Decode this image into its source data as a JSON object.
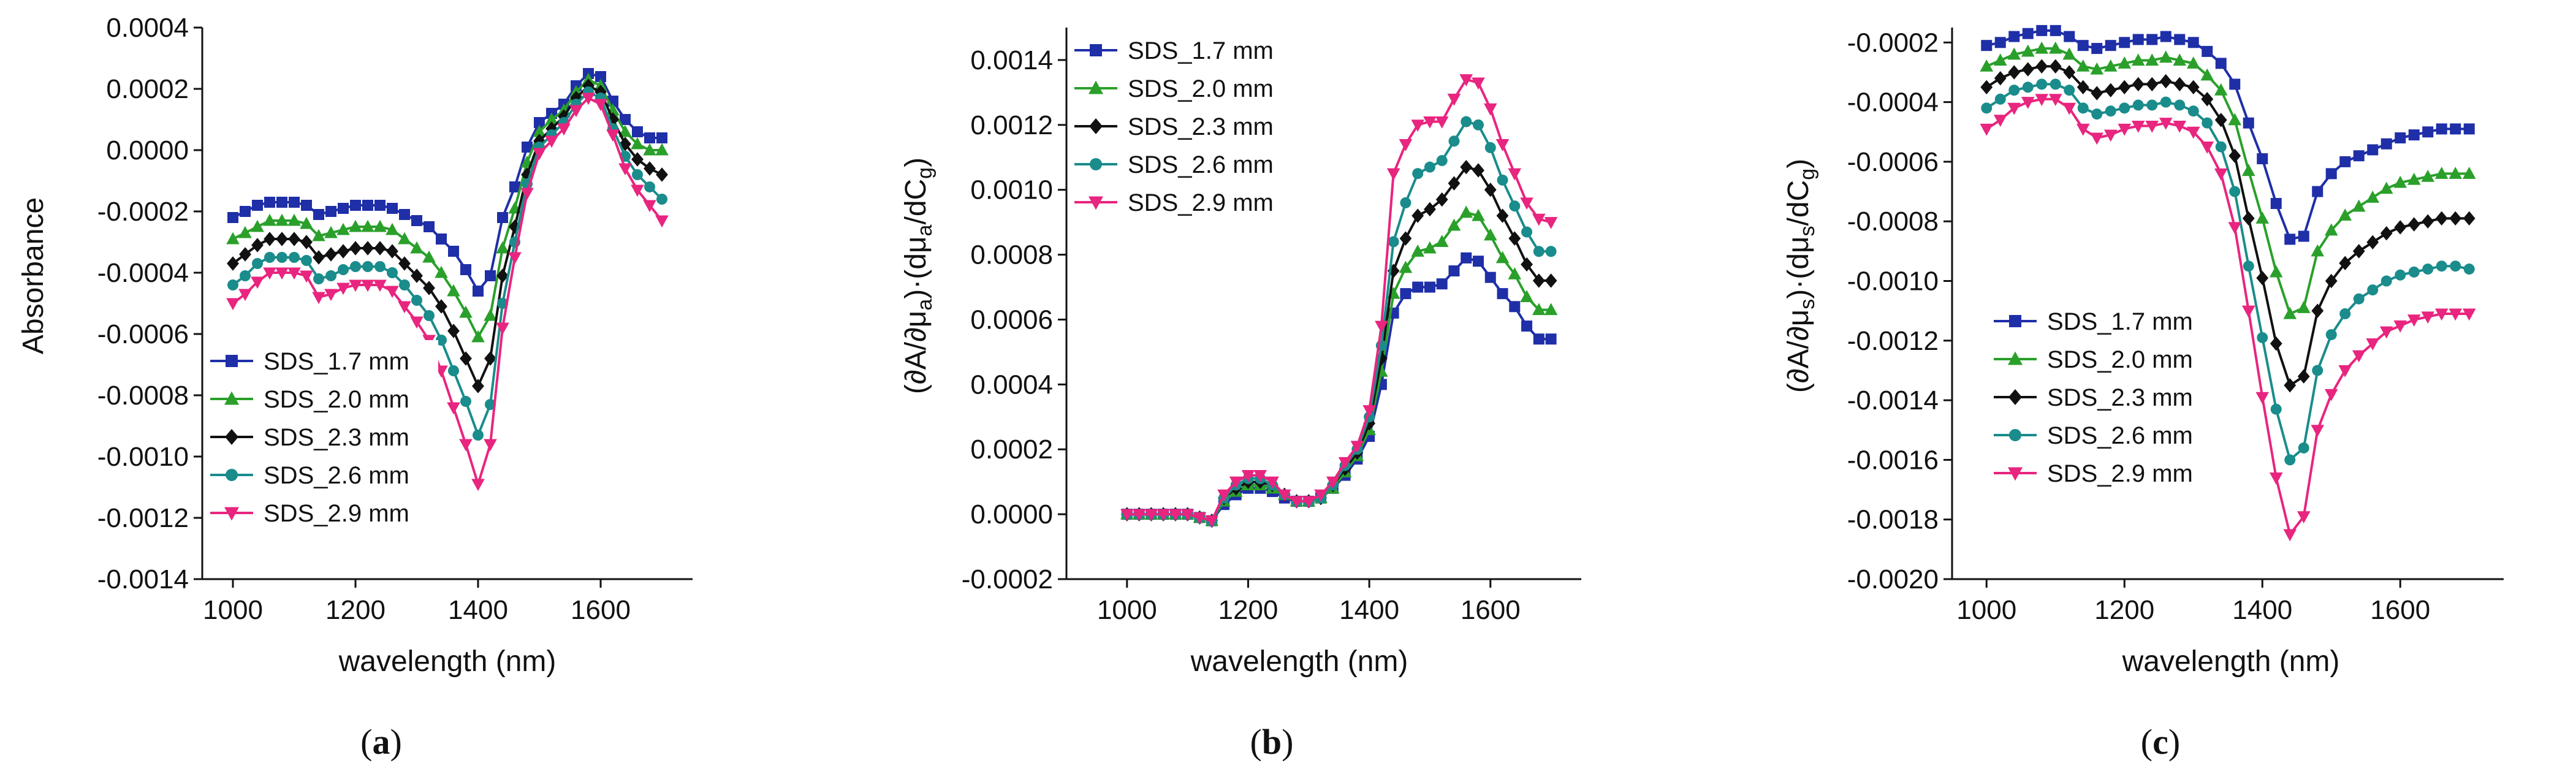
{
  "chart_data": [
    {
      "type": "line",
      "panel_label": "a",
      "title": "",
      "xlabel": "wavelength (nm)",
      "ylabel": "Absorbance",
      "xlim": [
        950,
        1750
      ],
      "ylim": [
        -0.0014,
        0.0004
      ],
      "xticks": [
        1000,
        1200,
        1400,
        1600
      ],
      "xtick_labels": [
        "1000",
        "1200",
        "1400",
        "1600"
      ],
      "yticks": [
        -0.0014,
        -0.0012,
        -0.001,
        -0.0008,
        -0.0006,
        -0.0004,
        -0.0002,
        0.0,
        0.0002,
        0.0004
      ],
      "ytick_labels": [
        "-0.0014",
        "-0.0012",
        "-0.0010",
        "-0.0008",
        "-0.0006",
        "-0.0004",
        "-0.0002",
        "0.0000",
        "0.0002",
        "0.0004"
      ],
      "legend_position": "lower-left",
      "x": [
        1000,
        1020,
        1040,
        1060,
        1080,
        1100,
        1120,
        1140,
        1160,
        1180,
        1200,
        1220,
        1240,
        1260,
        1280,
        1300,
        1320,
        1340,
        1360,
        1380,
        1400,
        1420,
        1440,
        1460,
        1480,
        1500,
        1520,
        1540,
        1560,
        1580,
        1600,
        1620,
        1640,
        1660,
        1680,
        1700
      ],
      "series": [
        {
          "name": "SDS_1.7 mm",
          "color": "#1f2fa8",
          "marker": "square",
          "values": [
            -0.00022,
            -0.0002,
            -0.00018,
            -0.00017,
            -0.00017,
            -0.00017,
            -0.00018,
            -0.00021,
            -0.0002,
            -0.00019,
            -0.00018,
            -0.00018,
            -0.00018,
            -0.00019,
            -0.00021,
            -0.00023,
            -0.00025,
            -0.00029,
            -0.00033,
            -0.00039,
            -0.00046,
            -0.00041,
            -0.00022,
            -0.00012,
            1e-05,
            9e-05,
            0.00012,
            0.00015,
            0.00021,
            0.00025,
            0.00024,
            0.00016,
            0.0001,
            6e-05,
            4e-05,
            4e-05
          ]
        },
        {
          "name": "SDS_2.0 mm",
          "color": "#2aa02a",
          "marker": "triangle-up",
          "values": [
            -0.00029,
            -0.00027,
            -0.00025,
            -0.00023,
            -0.00023,
            -0.00023,
            -0.00024,
            -0.00028,
            -0.00027,
            -0.00026,
            -0.00025,
            -0.00025,
            -0.00025,
            -0.00026,
            -0.00029,
            -0.00032,
            -0.00035,
            -0.0004,
            -0.00046,
            -0.00053,
            -0.00061,
            -0.00054,
            -0.00032,
            -0.00019,
            -4e-05,
            6e-05,
            0.0001,
            0.00013,
            0.00019,
            0.00023,
            0.00021,
            0.00013,
            6e-05,
            2e-05,
            0.0,
            0.0
          ]
        },
        {
          "name": "SDS_2.3 mm",
          "color": "#111111",
          "marker": "diamond",
          "values": [
            -0.00037,
            -0.00034,
            -0.00031,
            -0.00029,
            -0.00029,
            -0.00029,
            -0.0003,
            -0.00035,
            -0.00034,
            -0.00033,
            -0.00032,
            -0.00032,
            -0.00032,
            -0.00033,
            -0.00037,
            -0.00041,
            -0.00045,
            -0.00051,
            -0.00059,
            -0.00068,
            -0.00077,
            -0.00068,
            -0.00041,
            -0.00025,
            -8e-05,
            3e-05,
            7e-05,
            0.00011,
            0.00017,
            0.00021,
            0.00019,
            0.0001,
            2e-05,
            -3e-05,
            -6e-05,
            -8e-05
          ]
        },
        {
          "name": "SDS_2.6 mm",
          "color": "#1a8c8c",
          "marker": "circle",
          "values": [
            -0.00044,
            -0.00041,
            -0.00037,
            -0.00035,
            -0.00035,
            -0.00035,
            -0.00036,
            -0.00042,
            -0.00041,
            -0.00039,
            -0.00038,
            -0.00038,
            -0.00038,
            -0.0004,
            -0.00044,
            -0.00049,
            -0.00054,
            -0.00062,
            -0.00072,
            -0.00082,
            -0.00093,
            -0.00083,
            -0.0005,
            -0.0003,
            -0.00011,
            1e-05,
            5e-05,
            9e-05,
            0.00015,
            0.00019,
            0.00017,
            7e-05,
            -2e-05,
            -8e-05,
            -0.00012,
            -0.00016
          ]
        },
        {
          "name": "SDS_2.9 mm",
          "color": "#e8257f",
          "marker": "triangle-down",
          "values": [
            -0.0005,
            -0.00047,
            -0.00043,
            -0.0004,
            -0.0004,
            -0.0004,
            -0.00041,
            -0.00048,
            -0.00047,
            -0.00045,
            -0.00044,
            -0.00044,
            -0.00044,
            -0.00046,
            -0.00051,
            -0.00056,
            -0.00062,
            -0.00072,
            -0.00084,
            -0.00096,
            -0.00109,
            -0.00096,
            -0.00058,
            -0.00035,
            -0.00014,
            -1e-05,
            3e-05,
            7e-05,
            0.00013,
            0.00017,
            0.00015,
            5e-05,
            -6e-05,
            -0.00013,
            -0.00018,
            -0.00023
          ]
        }
      ]
    },
    {
      "type": "line",
      "panel_label": "b",
      "title": "",
      "xlabel": "wavelength (nm)",
      "ylabel_parts": {
        "p1": "(∂A/∂μ",
        "s1": "a",
        "p2": ")·(dμ",
        "s2": "a",
        "p3": "/dC",
        "s3": "g",
        "p4": ")"
      },
      "xlim": [
        900,
        1750
      ],
      "ylim": [
        -0.0002,
        0.0015
      ],
      "xticks": [
        1000,
        1200,
        1400,
        1600
      ],
      "xtick_labels": [
        "1000",
        "1200",
        "1400",
        "1600"
      ],
      "yticks": [
        -0.0002,
        0.0,
        0.0002,
        0.0004,
        0.0006,
        0.0008,
        0.001,
        0.0012,
        0.0014
      ],
      "ytick_labels": [
        "-0.0002",
        "0.0000",
        "0.0002",
        "0.0004",
        "0.0006",
        "0.0008",
        "0.0010",
        "0.0012",
        "0.0014"
      ],
      "legend_position": "top-left",
      "x": [
        1000,
        1020,
        1040,
        1060,
        1080,
        1100,
        1120,
        1140,
        1160,
        1180,
        1200,
        1220,
        1240,
        1260,
        1280,
        1300,
        1320,
        1340,
        1360,
        1380,
        1400,
        1420,
        1440,
        1460,
        1480,
        1500,
        1520,
        1540,
        1560,
        1580,
        1600,
        1620,
        1640,
        1660,
        1680,
        1700
      ],
      "series": [
        {
          "name": "SDS_1.7 mm",
          "color": "#1f2fa8",
          "marker": "square",
          "values": [
            0.0,
            0.0,
            0.0,
            0.0,
            0.0,
            0.0,
            -1e-05,
            -2e-05,
            3e-05,
            6e-05,
            8e-05,
            8e-05,
            7e-05,
            5e-05,
            4e-05,
            4e-05,
            5e-05,
            8e-05,
            0.00012,
            0.00017,
            0.00024,
            0.0004,
            0.00062,
            0.00068,
            0.0007,
            0.0007,
            0.00071,
            0.00075,
            0.00079,
            0.00078,
            0.00073,
            0.00068,
            0.00064,
            0.00058,
            0.00054,
            0.00054
          ]
        },
        {
          "name": "SDS_2.0 mm",
          "color": "#2aa02a",
          "marker": "triangle-up",
          "values": [
            0.0,
            0.0,
            0.0,
            0.0,
            0.0,
            0.0,
            -1e-05,
            -2e-05,
            4e-05,
            7e-05,
            9e-05,
            9e-05,
            8e-05,
            6e-05,
            4e-05,
            4e-05,
            5e-05,
            8e-05,
            0.00013,
            0.00018,
            0.00026,
            0.00044,
            0.00068,
            0.00076,
            0.00081,
            0.00082,
            0.00084,
            0.00089,
            0.00093,
            0.00092,
            0.00086,
            0.00079,
            0.00074,
            0.00067,
            0.00063,
            0.00063
          ]
        },
        {
          "name": "SDS_2.3 mm",
          "color": "#111111",
          "marker": "diamond",
          "values": [
            0.0,
            0.0,
            0.0,
            0.0,
            0.0,
            0.0,
            -1e-05,
            -2e-05,
            5e-05,
            8e-05,
            0.0001,
            0.0001,
            9e-05,
            6e-05,
            4e-05,
            4e-05,
            5e-05,
            9e-05,
            0.00014,
            0.00019,
            0.00028,
            0.00048,
            0.00075,
            0.00085,
            0.00092,
            0.00094,
            0.00097,
            0.00102,
            0.00107,
            0.00106,
            0.001,
            0.00092,
            0.00085,
            0.00077,
            0.00072,
            0.00072
          ]
        },
        {
          "name": "SDS_2.6 mm",
          "color": "#1a8c8c",
          "marker": "circle",
          "values": [
            0.0,
            0.0,
            0.0,
            0.0,
            0.0,
            0.0,
            -1e-05,
            -2e-05,
            5e-05,
            9e-05,
            0.00011,
            0.00011,
            9e-05,
            6e-05,
            4e-05,
            4e-05,
            5e-05,
            9e-05,
            0.00015,
            0.0002,
            0.0003,
            0.00052,
            0.00084,
            0.00096,
            0.00105,
            0.00107,
            0.00109,
            0.00115,
            0.00121,
            0.0012,
            0.00113,
            0.00103,
            0.00095,
            0.00087,
            0.00081,
            0.00081
          ]
        },
        {
          "name": "SDS_2.9 mm",
          "color": "#e8257f",
          "marker": "triangle-down",
          "values": [
            0.0,
            0.0,
            0.0,
            0.0,
            0.0,
            0.0,
            -1e-05,
            -2e-05,
            6e-05,
            0.0001,
            0.00012,
            0.00012,
            0.0001,
            6e-05,
            4e-05,
            4e-05,
            6e-05,
            0.0001,
            0.00016,
            0.00021,
            0.00032,
            0.00058,
            0.00105,
            0.00114,
            0.0012,
            0.00121,
            0.00121,
            0.00128,
            0.00134,
            0.00133,
            0.00125,
            0.00114,
            0.00105,
            0.00096,
            0.00091,
            0.0009
          ]
        }
      ]
    },
    {
      "type": "line",
      "panel_label": "c",
      "title": "",
      "xlabel": "wavelength (nm)",
      "ylabel_parts": {
        "p1": "(∂A/∂μ",
        "s1": "s",
        "p2": ")·(dμ",
        "s2": "s",
        "p3": "/dC",
        "s3": "g",
        "p4": ")"
      },
      "xlim": [
        950,
        1750
      ],
      "ylim": [
        -0.002,
        -0.00015
      ],
      "xticks": [
        1000,
        1200,
        1400,
        1600
      ],
      "xtick_labels": [
        "1000",
        "1200",
        "1400",
        "1600"
      ],
      "yticks": [
        -0.002,
        -0.0018,
        -0.0016,
        -0.0014,
        -0.0012,
        -0.001,
        -0.0008,
        -0.0006,
        -0.0004,
        -0.0002
      ],
      "ytick_labels": [
        "-0.0020",
        "-0.0018",
        "-0.0016",
        "-0.0014",
        "-0.0012",
        "-0.0010",
        "-0.0008",
        "-0.0006",
        "-0.0004",
        "-0.0002"
      ],
      "legend_position": "lower-left",
      "x": [
        1000,
        1020,
        1040,
        1060,
        1080,
        1100,
        1120,
        1140,
        1160,
        1180,
        1200,
        1220,
        1240,
        1260,
        1280,
        1300,
        1320,
        1340,
        1360,
        1380,
        1400,
        1420,
        1440,
        1460,
        1480,
        1500,
        1520,
        1540,
        1560,
        1580,
        1600,
        1620,
        1640,
        1660,
        1680,
        1700
      ],
      "series": [
        {
          "name": "SDS_1.7 mm",
          "color": "#1f2fa8",
          "marker": "square",
          "values": [
            -0.00021,
            -0.0002,
            -0.00018,
            -0.00017,
            -0.00016,
            -0.00016,
            -0.00018,
            -0.00021,
            -0.00022,
            -0.00021,
            -0.0002,
            -0.00019,
            -0.00019,
            -0.00018,
            -0.00019,
            -0.0002,
            -0.00023,
            -0.00027,
            -0.00034,
            -0.00047,
            -0.00059,
            -0.00074,
            -0.00086,
            -0.00085,
            -0.0007,
            -0.00064,
            -0.0006,
            -0.00058,
            -0.00056,
            -0.00054,
            -0.00052,
            -0.00051,
            -0.0005,
            -0.00049,
            -0.00049,
            -0.00049
          ]
        },
        {
          "name": "SDS_2.0 mm",
          "color": "#2aa02a",
          "marker": "triangle-up",
          "values": [
            -0.00028,
            -0.00026,
            -0.00024,
            -0.00023,
            -0.00022,
            -0.00022,
            -0.00024,
            -0.00028,
            -0.00029,
            -0.00028,
            -0.00027,
            -0.00026,
            -0.00026,
            -0.00025,
            -0.00026,
            -0.00027,
            -0.00031,
            -0.00036,
            -0.00046,
            -0.00063,
            -0.00079,
            -0.00097,
            -0.00111,
            -0.00109,
            -0.0009,
            -0.00083,
            -0.00078,
            -0.00075,
            -0.00072,
            -0.00069,
            -0.00067,
            -0.00066,
            -0.00065,
            -0.00064,
            -0.00064,
            -0.00064
          ]
        },
        {
          "name": "SDS_2.3 mm",
          "color": "#111111",
          "marker": "diamond",
          "values": [
            -0.00035,
            -0.00032,
            -0.0003,
            -0.00029,
            -0.00028,
            -0.00028,
            -0.0003,
            -0.00035,
            -0.00037,
            -0.00036,
            -0.00035,
            -0.00034,
            -0.00034,
            -0.00033,
            -0.00034,
            -0.00035,
            -0.00039,
            -0.00046,
            -0.00058,
            -0.00079,
            -0.00099,
            -0.00121,
            -0.00135,
            -0.00132,
            -0.0011,
            -0.001,
            -0.00094,
            -0.0009,
            -0.00087,
            -0.00084,
            -0.00082,
            -0.00081,
            -0.0008,
            -0.00079,
            -0.00079,
            -0.00079
          ]
        },
        {
          "name": "SDS_2.6 mm",
          "color": "#1a8c8c",
          "marker": "circle",
          "values": [
            -0.00042,
            -0.00039,
            -0.00036,
            -0.00035,
            -0.00034,
            -0.00034,
            -0.00036,
            -0.00042,
            -0.00044,
            -0.00043,
            -0.00042,
            -0.00041,
            -0.00041,
            -0.0004,
            -0.00041,
            -0.00043,
            -0.00047,
            -0.00055,
            -0.0007,
            -0.00095,
            -0.00119,
            -0.00143,
            -0.0016,
            -0.00156,
            -0.0013,
            -0.00118,
            -0.00111,
            -0.00106,
            -0.00103,
            -0.001,
            -0.00098,
            -0.00097,
            -0.00096,
            -0.00095,
            -0.00095,
            -0.00096
          ]
        },
        {
          "name": "SDS_2.9 mm",
          "color": "#e8257f",
          "marker": "triangle-down",
          "values": [
            -0.00049,
            -0.00046,
            -0.00042,
            -0.0004,
            -0.00039,
            -0.00039,
            -0.00042,
            -0.00049,
            -0.00052,
            -0.00051,
            -0.00049,
            -0.00048,
            -0.00048,
            -0.00047,
            -0.00048,
            -0.0005,
            -0.00055,
            -0.00064,
            -0.00082,
            -0.0011,
            -0.00139,
            -0.00166,
            -0.00185,
            -0.00179,
            -0.0015,
            -0.00138,
            -0.0013,
            -0.00125,
            -0.00121,
            -0.00117,
            -0.00115,
            -0.00113,
            -0.00112,
            -0.00111,
            -0.00111,
            -0.00111
          ]
        }
      ]
    }
  ]
}
